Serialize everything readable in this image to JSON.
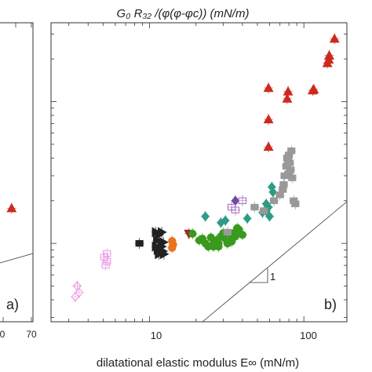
{
  "chart_data": [
    {
      "panel": "a)",
      "type": "scatter",
      "partial": true,
      "x_ticks_visible": [
        "0",
        "70"
      ],
      "points": [
        {
          "x": 52,
          "y_rel": 0.38,
          "color": "#cc2a1e",
          "marker": "triangle-up"
        }
      ]
    },
    {
      "panel": "b)",
      "type": "scatter",
      "title": "G₀ R₃₂ /(φ(φ-φc)) (mN/m)",
      "xlabel": "dilatational elastic modulus E∞ (mN/m)",
      "xscale": "log",
      "yscale": "log",
      "xlim": [
        2.3,
        190
      ],
      "x_ticks": [
        {
          "value": 10,
          "label": "10"
        },
        {
          "value": 100,
          "label": "100"
        }
      ],
      "y_tick_labels_visible": false,
      "slope_label": "1",
      "series": [
        {
          "color": "#e89be0",
          "marker": "diamond-open",
          "points": [
            [
              3.4,
              0.05
            ],
            [
              3.3,
              0.042
            ],
            [
              3.5,
              0.045
            ],
            [
              3.4,
              0.05
            ]
          ]
        },
        {
          "color": "#e89be0",
          "marker": "square-open",
          "points": [
            [
              5.1,
              0.08
            ],
            [
              5.3,
              0.075
            ],
            [
              5.2,
              0.07
            ],
            [
              5.3,
              0.085
            ]
          ]
        },
        {
          "color": "#222222",
          "marker": "square",
          "points": [
            [
              8.6,
              0.1
            ]
          ]
        },
        {
          "color": "#222222",
          "marker": "triangle-right",
          "points": [
            [
              11.0,
              0.12
            ],
            [
              11.5,
              0.115
            ],
            [
              12.0,
              0.12
            ],
            [
              11.2,
              0.105
            ],
            [
              12.3,
              0.102
            ],
            [
              11.0,
              0.095
            ],
            [
              12.0,
              0.095
            ],
            [
              11.3,
              0.09
            ],
            [
              12.2,
              0.088
            ],
            [
              11.5,
              0.084
            ],
            [
              12.4,
              0.084
            ]
          ]
        },
        {
          "color": "#ea7320",
          "marker": "circle",
          "points": [
            [
              14.0,
              0.104
            ],
            [
              14.2,
              0.098
            ],
            [
              14.0,
              0.093
            ]
          ]
        },
        {
          "color": "#9b2424",
          "marker": "triangle-down",
          "points": [
            [
              18.0,
              0.117
            ]
          ]
        },
        {
          "color": "#3a9a1e",
          "marker": "circle",
          "points": [
            [
              19,
              0.117
            ],
            [
              21,
              0.105
            ],
            [
              22,
              0.108
            ],
            [
              23,
              0.1
            ],
            [
              24,
              0.095
            ],
            [
              25,
              0.11
            ],
            [
              26,
              0.1
            ],
            [
              27,
              0.105
            ],
            [
              28,
              0.1
            ],
            [
              29,
              0.112
            ],
            [
              30,
              0.118
            ],
            [
              31,
              0.108
            ],
            [
              32,
              0.1
            ],
            [
              33,
              0.11
            ],
            [
              34,
              0.103
            ],
            [
              35,
              0.118
            ],
            [
              36,
              0.112
            ],
            [
              37,
              0.128
            ],
            [
              38,
              0.125
            ],
            [
              40,
              0.115
            ],
            [
              26,
              0.095
            ],
            [
              28,
              0.095
            ]
          ]
        },
        {
          "color": "#2e9b85",
          "marker": "diamond",
          "points": [
            [
              23,
              0.155
            ],
            [
              29,
              0.14
            ],
            [
              31,
              0.145
            ],
            [
              43,
              0.15
            ],
            [
              54,
              0.165
            ],
            [
              57,
              0.17
            ],
            [
              59,
              0.18
            ],
            [
              62,
              0.25
            ],
            [
              57,
              0.19
            ],
            [
              60,
              0.155
            ],
            [
              63,
              0.23
            ]
          ]
        },
        {
          "color": "#6b4aa8",
          "marker": "diamond",
          "points": [
            [
              36,
              0.2
            ]
          ]
        },
        {
          "color": "#a668c2",
          "marker": "square-open",
          "points": [
            [
              34,
              0.18
            ],
            [
              36,
              0.172
            ],
            [
              40,
              0.2
            ]
          ]
        },
        {
          "color": "#999999",
          "marker": "square",
          "points": [
            [
              32,
              0.12
            ],
            [
              48,
              0.18
            ],
            [
              55,
              0.17
            ],
            [
              64,
              0.2
            ],
            [
              70,
              0.22
            ],
            [
              73,
              0.24
            ],
            [
              75,
              0.3
            ],
            [
              77,
              0.35
            ],
            [
              78,
              0.4
            ],
            [
              79,
              0.38
            ],
            [
              80,
              0.42
            ],
            [
              81,
              0.37
            ],
            [
              82,
              0.33
            ],
            [
              83,
              0.45
            ],
            [
              80,
              0.31
            ],
            [
              84,
              0.29
            ],
            [
              86,
              0.2
            ],
            [
              88,
              0.19
            ],
            [
              74,
              0.26
            ]
          ]
        },
        {
          "color": "#cc2a1e",
          "marker": "triangle-up",
          "points": [
            [
              59,
              0.48
            ],
            [
              59,
              0.75
            ],
            [
              59,
              1.25
            ],
            [
              78,
              1.05
            ],
            [
              79,
              1.18
            ],
            [
              114,
              1.2
            ],
            [
              116,
              1.22
            ],
            [
              142,
              1.87
            ],
            [
              145,
              1.98
            ],
            [
              146,
              2.12
            ],
            [
              158,
              2.78
            ]
          ]
        }
      ]
    }
  ]
}
